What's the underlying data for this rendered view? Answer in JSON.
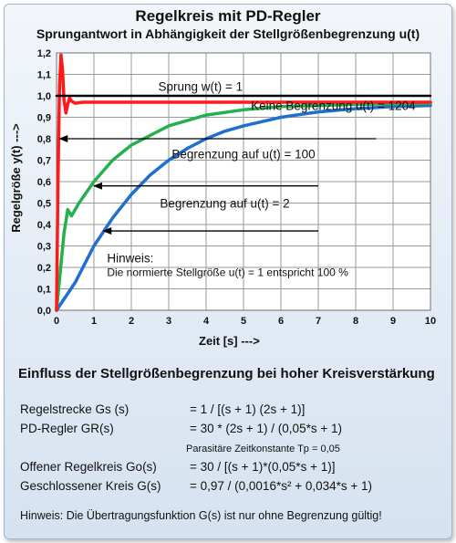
{
  "page": {
    "title": "Regelkreis mit PD-Regler",
    "subtitle": "Sprungantwort in Abhängigkeit der Stellgrößenbegrenzung u(t)"
  },
  "chart_data": {
    "type": "line",
    "xlabel": "Zeit  [s]  --->",
    "ylabel": "Regelgröße y(t)  --->",
    "xlim": [
      0,
      10
    ],
    "ylim": [
      0,
      1.2
    ],
    "x_ticks": [
      "0",
      "1",
      "2",
      "3",
      "4",
      "5",
      "6",
      "7",
      "8",
      "9",
      "10"
    ],
    "y_ticks": [
      "0,0",
      "0,1",
      "0,2",
      "0,3",
      "0,4",
      "0,5",
      "0,6",
      "0,7",
      "0,8",
      "0,9",
      "1,0",
      "1,1",
      "1,2"
    ],
    "grid": true,
    "series": [
      {
        "color": "#000000",
        "x": [
          0,
          10
        ],
        "y": [
          1.0,
          1.0
        ]
      },
      {
        "color": "#ff1a1a",
        "x": [
          0,
          0.04,
          0.08,
          0.12,
          0.16,
          0.2,
          0.25,
          0.3,
          0.35,
          0.4,
          0.5,
          0.7,
          1,
          2,
          4,
          6,
          8,
          10
        ],
        "y": [
          0,
          0.6,
          1.05,
          1.19,
          1.12,
          0.98,
          0.92,
          0.96,
          0.99,
          0.975,
          0.965,
          0.97,
          0.97,
          0.97,
          0.97,
          0.97,
          0.97,
          0.97
        ]
      },
      {
        "color": "#22b14c",
        "x": [
          0,
          0.1,
          0.2,
          0.3,
          0.4,
          0.5,
          0.6,
          0.8,
          1,
          1.5,
          2,
          3,
          4,
          5,
          6,
          7,
          8,
          9,
          10
        ],
        "y": [
          0,
          0.18,
          0.36,
          0.47,
          0.44,
          0.47,
          0.5,
          0.55,
          0.6,
          0.7,
          0.77,
          0.86,
          0.91,
          0.935,
          0.95,
          0.955,
          0.96,
          0.963,
          0.965
        ]
      },
      {
        "color": "#1f6fd1",
        "x": [
          0,
          0.5,
          1,
          1.5,
          2,
          2.5,
          3,
          3.5,
          4,
          4.5,
          5,
          6,
          7,
          8,
          9,
          10
        ],
        "y": [
          0,
          0.13,
          0.3,
          0.43,
          0.54,
          0.63,
          0.7,
          0.755,
          0.8,
          0.835,
          0.86,
          0.9,
          0.925,
          0.94,
          0.95,
          0.955
        ]
      }
    ],
    "annotations": [
      {
        "text": "Sprung    w(t)  = 1",
        "x": 3.85,
        "y": 1.045
      },
      {
        "text": "Keine Begrenzung  u(t) = 1204",
        "x": 7.4,
        "y": 0.955,
        "arrow_from": [
          8.55,
          0.8
        ],
        "arrow_to": [
          0.08,
          0.8
        ]
      },
      {
        "text": "Begrenzung  auf  u(t) = 100",
        "x": 5.0,
        "y": 0.73,
        "arrow_from": [
          7.0,
          0.58
        ],
        "arrow_to": [
          1.0,
          0.58
        ]
      },
      {
        "text": "Begrenzung  auf u(t) = 2",
        "x": 4.5,
        "y": 0.5,
        "arrow_from": [
          7.0,
          0.37
        ],
        "arrow_to": [
          1.25,
          0.37
        ]
      },
      {
        "text": "Hinweis:",
        "x": 1.35,
        "y": 0.245
      },
      {
        "text": "Die normierte Stellgröße u(t) = 1 entspricht 100 %",
        "x": 1.35,
        "y": 0.18
      }
    ]
  },
  "formulas": {
    "heading": "Einfluss der  Stellgrößenbegrenzung  bei hoher Kreisverstärkung",
    "rows": [
      {
        "label": "Regelstrecke Gs (s)",
        "expr": "= 1 / [(s + 1) (2s + 1)]"
      },
      {
        "label": "PD-Regler GR(s)",
        "expr": "= 30 * (2s + 1) / (0,05*s + 1)"
      },
      {
        "label": "",
        "expr": "Parasitäre Zeitkonstante Tp = 0,05"
      },
      {
        "label": "Offener Regelkreis Go(s)",
        "expr": "= 30 / [(s + 1)*(0,05*s + 1)]"
      },
      {
        "label": "Geschlossener  Kreis G(s)",
        "expr": "= 0,97 / (0,0016*s² + 0,034*s + 1)"
      }
    ],
    "note": "Hinweis: Die Übertragungsfunktion G(s) ist nur ohne Begrenzung gültig!"
  }
}
